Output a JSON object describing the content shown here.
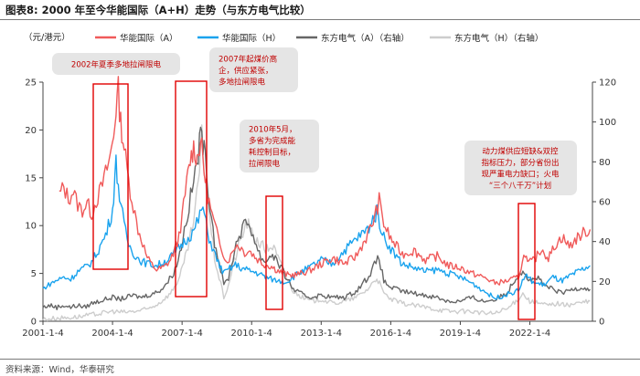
{
  "title": "图表8: 2000 年至今华能国际（A+H）走势（与东方电气比较）",
  "source": "资料来源：Wind，华泰研究",
  "chart_data": {
    "type": "line",
    "unit_label": "（元/港元）",
    "x_ticks": [
      "2001-1-4",
      "2004-1-4",
      "2007-1-4",
      "2010-1-4",
      "2013-1-4",
      "2016-1-4",
      "2019-1-4",
      "2022-1-4"
    ],
    "ylim_left": [
      0,
      25
    ],
    "y_ticks_left": [
      0,
      5,
      10,
      15,
      20,
      25
    ],
    "ylim_right": [
      0,
      120
    ],
    "y_ticks_right": [
      0,
      20,
      40,
      60,
      80,
      100,
      120
    ],
    "series": [
      {
        "name": "华能国际（A）",
        "color": "#f05a5a",
        "axis": "left",
        "points": [
          [
            2001.7,
            13.2
          ],
          [
            2001.9,
            14.0
          ],
          [
            2002.1,
            12.8
          ],
          [
            2002.3,
            13.6
          ],
          [
            2002.5,
            12.2
          ],
          [
            2002.7,
            11.6
          ],
          [
            2002.9,
            12.4
          ],
          [
            2003.1,
            11.2
          ],
          [
            2003.3,
            12.6
          ],
          [
            2003.5,
            13.8
          ],
          [
            2003.7,
            15.4
          ],
          [
            2003.9,
            17.2
          ],
          [
            2004.05,
            19.5
          ],
          [
            2004.15,
            22.4
          ],
          [
            2004.25,
            24.0
          ],
          [
            2004.35,
            20.8
          ],
          [
            2004.5,
            18.2
          ],
          [
            2004.7,
            14.6
          ],
          [
            2004.9,
            12.0
          ],
          [
            2005.1,
            9.6
          ],
          [
            2005.3,
            8.2
          ],
          [
            2005.5,
            6.6
          ],
          [
            2005.7,
            5.9
          ],
          [
            2005.9,
            5.4
          ],
          [
            2006.2,
            5.6
          ],
          [
            2006.5,
            6.4
          ],
          [
            2006.8,
            8.2
          ],
          [
            2007.0,
            10.8
          ],
          [
            2007.2,
            14.5
          ],
          [
            2007.35,
            16.8
          ],
          [
            2007.5,
            18.2
          ],
          [
            2007.65,
            17.0
          ],
          [
            2007.8,
            19.0
          ],
          [
            2007.95,
            15.8
          ],
          [
            2008.1,
            13.2
          ],
          [
            2008.3,
            11.0
          ],
          [
            2008.5,
            9.2
          ],
          [
            2008.7,
            7.8
          ],
          [
            2008.9,
            6.2
          ],
          [
            2009.1,
            6.8
          ],
          [
            2009.3,
            8.0
          ],
          [
            2009.5,
            7.8
          ],
          [
            2009.7,
            7.2
          ],
          [
            2009.9,
            7.4
          ],
          [
            2010.2,
            6.6
          ],
          [
            2010.5,
            6.0
          ],
          [
            2010.8,
            5.8
          ],
          [
            2011.2,
            5.2
          ],
          [
            2011.6,
            4.8
          ],
          [
            2012.0,
            4.9
          ],
          [
            2012.5,
            5.3
          ],
          [
            2013.0,
            6.0
          ],
          [
            2013.5,
            6.6
          ],
          [
            2014.0,
            6.0
          ],
          [
            2014.5,
            6.8
          ],
          [
            2015.0,
            9.0
          ],
          [
            2015.3,
            10.8
          ],
          [
            2015.5,
            12.6
          ],
          [
            2015.7,
            10.2
          ],
          [
            2016.0,
            8.6
          ],
          [
            2016.5,
            7.0
          ],
          [
            2017.0,
            7.4
          ],
          [
            2017.5,
            6.4
          ],
          [
            2018.0,
            6.8
          ],
          [
            2018.5,
            5.8
          ],
          [
            2019.0,
            5.6
          ],
          [
            2019.5,
            5.0
          ],
          [
            2020.0,
            4.6
          ],
          [
            2020.5,
            4.0
          ],
          [
            2021.0,
            4.2
          ],
          [
            2021.5,
            4.6
          ],
          [
            2021.8,
            7.2
          ],
          [
            2021.9,
            6.0
          ],
          [
            2022.2,
            6.4
          ],
          [
            2022.5,
            7.6
          ],
          [
            2022.8,
            6.6
          ],
          [
            2023.1,
            8.0
          ],
          [
            2023.4,
            8.8
          ],
          [
            2023.7,
            7.8
          ],
          [
            2024.0,
            8.6
          ],
          [
            2024.3,
            9.2
          ],
          [
            2024.6,
            9.6
          ]
        ]
      },
      {
        "name": "华能国际（H）",
        "color": "#1aa3ee",
        "axis": "left",
        "points": [
          [
            2001.0,
            3.4
          ],
          [
            2001.3,
            3.9
          ],
          [
            2001.6,
            4.3
          ],
          [
            2001.9,
            4.6
          ],
          [
            2002.2,
            4.4
          ],
          [
            2002.5,
            5.2
          ],
          [
            2002.8,
            5.6
          ],
          [
            2003.1,
            6.2
          ],
          [
            2003.4,
            7.5
          ],
          [
            2003.7,
            9.0
          ],
          [
            2004.0,
            11.6
          ],
          [
            2004.15,
            16.5
          ],
          [
            2004.3,
            13.2
          ],
          [
            2004.5,
            10.0
          ],
          [
            2004.7,
            8.0
          ],
          [
            2005.0,
            6.8
          ],
          [
            2005.3,
            6.2
          ],
          [
            2005.6,
            6.0
          ],
          [
            2005.9,
            5.8
          ],
          [
            2006.3,
            6.3
          ],
          [
            2006.6,
            6.9
          ],
          [
            2006.9,
            7.8
          ],
          [
            2007.2,
            8.6
          ],
          [
            2007.5,
            9.4
          ],
          [
            2007.7,
            10.6
          ],
          [
            2007.9,
            12.0
          ],
          [
            2008.1,
            9.2
          ],
          [
            2008.3,
            7.8
          ],
          [
            2008.5,
            6.4
          ],
          [
            2008.8,
            5.0
          ],
          [
            2009.0,
            5.4
          ],
          [
            2009.3,
            5.9
          ],
          [
            2009.6,
            5.5
          ],
          [
            2009.9,
            5.3
          ],
          [
            2010.3,
            5.0
          ],
          [
            2010.6,
            4.6
          ],
          [
            2011.0,
            4.3
          ],
          [
            2011.5,
            4.1
          ],
          [
            2012.0,
            5.0
          ],
          [
            2012.5,
            5.6
          ],
          [
            2013.0,
            6.4
          ],
          [
            2013.5,
            6.0
          ],
          [
            2014.0,
            7.4
          ],
          [
            2014.5,
            8.6
          ],
          [
            2015.0,
            9.6
          ],
          [
            2015.4,
            11.4
          ],
          [
            2015.7,
            8.8
          ],
          [
            2016.0,
            7.6
          ],
          [
            2016.5,
            6.0
          ],
          [
            2017.0,
            5.6
          ],
          [
            2017.5,
            5.2
          ],
          [
            2018.0,
            5.4
          ],
          [
            2018.5,
            5.0
          ],
          [
            2019.0,
            4.6
          ],
          [
            2019.5,
            4.0
          ],
          [
            2020.0,
            3.2
          ],
          [
            2020.5,
            2.4
          ],
          [
            2021.0,
            2.8
          ],
          [
            2021.5,
            3.2
          ],
          [
            2021.8,
            4.8
          ],
          [
            2022.2,
            4.0
          ],
          [
            2022.6,
            3.8
          ],
          [
            2023.0,
            4.6
          ],
          [
            2023.4,
            4.2
          ],
          [
            2023.8,
            4.8
          ],
          [
            2024.2,
            5.3
          ],
          [
            2024.6,
            5.8
          ]
        ]
      },
      {
        "name": "东方电气（A）（右轴）",
        "color": "#666666",
        "axis": "right",
        "points": [
          [
            2001.0,
            7
          ],
          [
            2001.3,
            8
          ],
          [
            2001.6,
            7
          ],
          [
            2001.9,
            8
          ],
          [
            2002.2,
            7
          ],
          [
            2002.5,
            8
          ],
          [
            2002.8,
            7
          ],
          [
            2003.1,
            9
          ],
          [
            2003.4,
            10
          ],
          [
            2003.7,
            11
          ],
          [
            2004.0,
            12
          ],
          [
            2004.3,
            11
          ],
          [
            2004.6,
            12
          ],
          [
            2004.9,
            13
          ],
          [
            2005.2,
            12
          ],
          [
            2005.5,
            13
          ],
          [
            2005.8,
            14
          ],
          [
            2006.1,
            16
          ],
          [
            2006.4,
            20
          ],
          [
            2006.7,
            26
          ],
          [
            2006.9,
            34
          ],
          [
            2007.1,
            46
          ],
          [
            2007.3,
            58
          ],
          [
            2007.5,
            70
          ],
          [
            2007.7,
            84
          ],
          [
            2007.85,
            96
          ],
          [
            2008.0,
            80
          ],
          [
            2008.2,
            60
          ],
          [
            2008.4,
            40
          ],
          [
            2008.6,
            30
          ],
          [
            2008.8,
            18
          ],
          [
            2009.0,
            22
          ],
          [
            2009.2,
            32
          ],
          [
            2009.4,
            42
          ],
          [
            2009.6,
            46
          ],
          [
            2009.8,
            50
          ],
          [
            2010.0,
            46
          ],
          [
            2010.2,
            38
          ],
          [
            2010.4,
            32
          ],
          [
            2010.6,
            30
          ],
          [
            2010.9,
            34
          ],
          [
            2011.2,
            28
          ],
          [
            2011.5,
            22
          ],
          [
            2011.8,
            16
          ],
          [
            2012.1,
            14
          ],
          [
            2012.5,
            12
          ],
          [
            2013.0,
            13
          ],
          [
            2013.5,
            12
          ],
          [
            2014.0,
            12
          ],
          [
            2014.5,
            15
          ],
          [
            2015.0,
            22
          ],
          [
            2015.3,
            28
          ],
          [
            2015.5,
            32
          ],
          [
            2015.7,
            20
          ],
          [
            2016.0,
            17
          ],
          [
            2016.5,
            15
          ],
          [
            2017.0,
            14
          ],
          [
            2017.5,
            13
          ],
          [
            2018.0,
            12
          ],
          [
            2018.5,
            10
          ],
          [
            2019.0,
            10
          ],
          [
            2019.5,
            12
          ],
          [
            2020.0,
            10
          ],
          [
            2020.5,
            11
          ],
          [
            2021.0,
            14
          ],
          [
            2021.4,
            22
          ],
          [
            2021.7,
            26
          ],
          [
            2022.0,
            20
          ],
          [
            2022.3,
            22
          ],
          [
            2022.6,
            18
          ],
          [
            2023.0,
            16
          ],
          [
            2023.4,
            14
          ],
          [
            2023.8,
            16
          ],
          [
            2024.2,
            17
          ],
          [
            2024.6,
            16
          ]
        ]
      },
      {
        "name": "东方电气（H）（右轴）",
        "color": "#cdcdcd",
        "axis": "right",
        "points": [
          [
            2001.0,
            1
          ],
          [
            2001.5,
            1.5
          ],
          [
            2002.0,
            1.8
          ],
          [
            2002.5,
            2.2
          ],
          [
            2003.0,
            3
          ],
          [
            2003.5,
            4
          ],
          [
            2004.0,
            5
          ],
          [
            2004.5,
            4.5
          ],
          [
            2005.0,
            5
          ],
          [
            2005.5,
            6
          ],
          [
            2006.0,
            9
          ],
          [
            2006.5,
            14
          ],
          [
            2006.9,
            22
          ],
          [
            2007.2,
            34
          ],
          [
            2007.5,
            50
          ],
          [
            2007.7,
            68
          ],
          [
            2007.85,
            92
          ],
          [
            2008.0,
            72
          ],
          [
            2008.2,
            50
          ],
          [
            2008.4,
            32
          ],
          [
            2008.6,
            22
          ],
          [
            2008.8,
            12
          ],
          [
            2009.0,
            18
          ],
          [
            2009.2,
            28
          ],
          [
            2009.5,
            40
          ],
          [
            2009.8,
            50
          ],
          [
            2010.0,
            44
          ],
          [
            2010.3,
            40
          ],
          [
            2010.6,
            36
          ],
          [
            2010.9,
            38
          ],
          [
            2011.2,
            30
          ],
          [
            2011.5,
            22
          ],
          [
            2011.8,
            15
          ],
          [
            2012.2,
            12
          ],
          [
            2012.6,
            10
          ],
          [
            2013.0,
            11
          ],
          [
            2013.5,
            9
          ],
          [
            2014.0,
            10
          ],
          [
            2014.5,
            12
          ],
          [
            2015.0,
            16
          ],
          [
            2015.4,
            22
          ],
          [
            2015.7,
            14
          ],
          [
            2016.0,
            11
          ],
          [
            2016.5,
            9
          ],
          [
            2017.0,
            8
          ],
          [
            2017.5,
            7
          ],
          [
            2018.0,
            6
          ],
          [
            2018.5,
            5
          ],
          [
            2019.0,
            5
          ],
          [
            2019.5,
            5
          ],
          [
            2020.0,
            4
          ],
          [
            2020.5,
            4
          ],
          [
            2021.0,
            6
          ],
          [
            2021.4,
            10
          ],
          [
            2021.7,
            14
          ],
          [
            2022.0,
            10
          ],
          [
            2022.4,
            9
          ],
          [
            2022.8,
            8
          ],
          [
            2023.2,
            9
          ],
          [
            2023.6,
            8
          ],
          [
            2024.0,
            9
          ],
          [
            2024.6,
            10
          ]
        ]
      }
    ],
    "callouts": [
      {
        "lines": [
          "2002年夏季多地拉闸限电"
        ]
      },
      {
        "lines": [
          "2007年起煤价高",
          "企，供应紧张，",
          "多地拉闸限电"
        ]
      },
      {
        "lines": [
          "2010年5月，",
          "多省为完成能",
          "耗控制目标，",
          "拉闸限电"
        ]
      },
      {
        "lines": [
          "动力煤供应短缺&双控",
          "指标压力，部分省份出",
          "现严重电力缺口；火电",
          "“三个八千万”计划"
        ]
      }
    ]
  }
}
